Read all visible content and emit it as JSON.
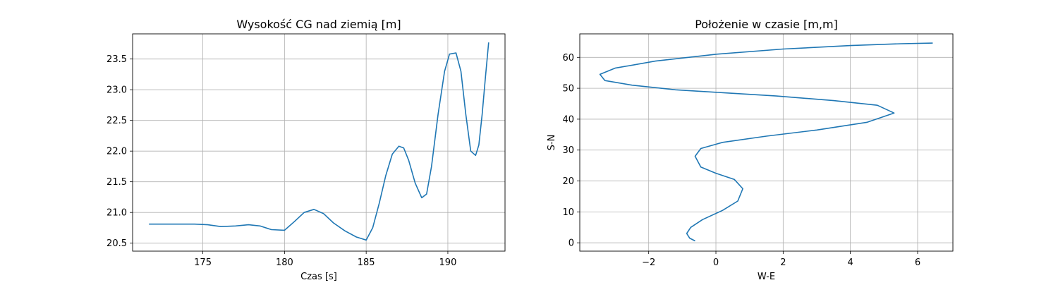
{
  "chart_data": [
    {
      "type": "line",
      "title": "Wysokość CG nad ziemią [m]",
      "xlabel": "Czas [s]",
      "ylabel": "",
      "xlim": [
        170.7,
        193.5
      ],
      "ylim": [
        20.37,
        23.91
      ],
      "xticks": [
        175,
        180,
        185,
        190
      ],
      "xtick_labels": [
        "175",
        "180",
        "185",
        "190"
      ],
      "yticks": [
        20.5,
        21.0,
        21.5,
        22.0,
        22.5,
        23.0,
        23.5
      ],
      "ytick_labels": [
        "20.5",
        "21.0",
        "21.5",
        "22.0",
        "22.5",
        "23.0",
        "23.5"
      ],
      "grid": true,
      "line_color": "#1f77b4",
      "series": [
        {
          "x": [
            171.7,
            172.5,
            173.5,
            174.5,
            175.3,
            176.1,
            177.0,
            177.8,
            178.5,
            179.2,
            180.0,
            180.6,
            181.2,
            181.8,
            182.4,
            183.0,
            183.7,
            184.4,
            185.0,
            185.4,
            185.8,
            186.2,
            186.6,
            187.0,
            187.3,
            187.6,
            188.0,
            188.4,
            188.7,
            189.0,
            189.4,
            189.8,
            190.1,
            190.5,
            190.8,
            191.1,
            191.4,
            191.7,
            191.9,
            192.1,
            192.3,
            192.5
          ],
          "y": [
            20.81,
            20.81,
            20.81,
            20.81,
            20.8,
            20.77,
            20.78,
            20.8,
            20.78,
            20.72,
            20.71,
            20.85,
            21.0,
            21.05,
            20.98,
            20.83,
            20.7,
            20.6,
            20.55,
            20.75,
            21.15,
            21.6,
            21.95,
            22.08,
            22.05,
            21.85,
            21.48,
            21.24,
            21.3,
            21.75,
            22.6,
            23.3,
            23.58,
            23.6,
            23.3,
            22.6,
            22.0,
            21.93,
            22.1,
            22.6,
            23.2,
            23.77
          ]
        }
      ]
    },
    {
      "type": "line",
      "title": "Położenie w czasie [m,m]",
      "xlabel": "W-E",
      "ylabel": "S-N",
      "xlim": [
        -4.05,
        7.05
      ],
      "ylim": [
        -2.7,
        67.6
      ],
      "xticks": [
        -2,
        0,
        2,
        4,
        6
      ],
      "xtick_labels": [
        "−2",
        "0",
        "2",
        "4",
        "6"
      ],
      "yticks": [
        0,
        10,
        20,
        30,
        40,
        50,
        60
      ],
      "ytick_labels": [
        "0",
        "10",
        "20",
        "30",
        "40",
        "50",
        "60"
      ],
      "grid": true,
      "line_color": "#1f77b4",
      "series": [
        {
          "x": [
            -0.62,
            -0.78,
            -0.87,
            -0.75,
            -0.4,
            0.2,
            0.65,
            0.8,
            0.55,
            0.0,
            -0.45,
            -0.62,
            -0.45,
            0.2,
            1.5,
            3.0,
            4.5,
            5.3,
            4.8,
            3.5,
            1.8,
            0.3,
            -1.2,
            -2.5,
            -3.3,
            -3.45,
            -3.0,
            -1.8,
            0.0,
            2.0,
            4.0,
            5.5,
            6.45
          ],
          "y": [
            0.6,
            1.5,
            3.0,
            5.0,
            7.5,
            10.5,
            13.5,
            17.5,
            20.5,
            22.5,
            24.5,
            28.0,
            30.5,
            32.5,
            34.5,
            36.5,
            39.0,
            42.0,
            44.5,
            46.0,
            47.5,
            48.5,
            49.5,
            51.0,
            52.5,
            54.5,
            56.5,
            58.8,
            61.0,
            62.7,
            63.8,
            64.4,
            64.6
          ]
        }
      ]
    }
  ]
}
